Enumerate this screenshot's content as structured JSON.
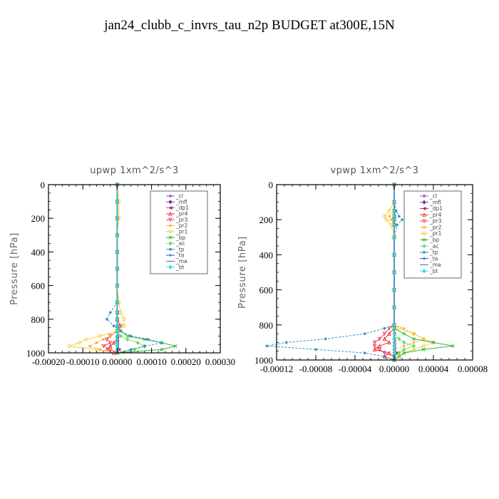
{
  "figure_title": "jan24_clubb_c_invrs_tau_n2p  BUDGET at300E,15N",
  "chart_data": [
    {
      "type": "line",
      "title": "upwp   1xm^2/s^3",
      "ylabel": "Pressure [hPa]",
      "xlim": [
        -0.0002,
        0.0003
      ],
      "ylim": [
        1000,
        0
      ],
      "xticks": [
        -0.0002,
        -0.0001,
        0.0,
        0.0001,
        0.0002,
        0.0003
      ],
      "xtick_labels": [
        "-0.00020",
        "-0.00010",
        "0.00000",
        "0.00010",
        "0.00020",
        "0.00030"
      ],
      "yticks": [
        0,
        200,
        400,
        600,
        800,
        1000
      ],
      "ytick_labels": [
        "0",
        "200",
        "400",
        "600",
        "800",
        "1000"
      ],
      "legend_position": "top-right",
      "pressure": [
        0,
        100,
        200,
        300,
        400,
        500,
        600,
        700,
        760,
        800,
        840,
        870,
        900,
        920,
        940,
        960,
        980,
        1000
      ],
      "series": [
        {
          "name": "_cl",
          "color": "#8844cc",
          "marker": "star",
          "values": [
            0,
            0,
            0,
            0,
            0,
            0,
            0,
            0,
            0,
            0,
            0,
            0,
            0,
            0,
            0,
            0,
            0,
            0
          ]
        },
        {
          "name": "_mfl",
          "color": "#6a2a8a",
          "marker": "diamond",
          "values": [
            0,
            0,
            0,
            0,
            0,
            0,
            0,
            0,
            0,
            0,
            0,
            0,
            0,
            0,
            0,
            0,
            0,
            0
          ]
        },
        {
          "name": "_dp1",
          "color": "#aa2266",
          "marker": "triangle-left",
          "values": [
            0,
            0,
            0,
            0,
            0,
            0,
            0,
            0,
            0,
            0,
            0,
            0,
            0,
            0,
            0,
            0,
            5e-06,
            0
          ]
        },
        {
          "name": "_pr4",
          "color": "#ee2222",
          "marker": "triangle-up",
          "values": [
            0,
            0,
            0,
            0,
            0,
            0,
            0,
            0,
            0,
            0,
            0,
            0,
            0,
            0,
            -1e-05,
            -2e-05,
            -3e-05,
            -1e-05
          ]
        },
        {
          "name": "_pr3",
          "color": "#ee3355",
          "marker": "triangle-down",
          "values": [
            0,
            0,
            0,
            0,
            0,
            0,
            0,
            0,
            0,
            0,
            1e-05,
            0,
            -2e-05,
            -3e-05,
            -2e-05,
            -4e-05,
            -2e-05,
            0
          ]
        },
        {
          "name": "_pr2",
          "color": "#ffaa33",
          "marker": "star",
          "values": [
            0,
            0,
            0,
            0,
            0,
            0,
            0,
            0,
            0,
            0,
            0,
            0,
            -2e-05,
            -4e-05,
            -6e-05,
            -8e-05,
            -5e-05,
            0
          ]
        },
        {
          "name": "_pr1",
          "color": "#eecc22",
          "marker": "circle",
          "values": [
            0,
            5e-06,
            5e-06,
            0,
            0,
            0,
            0,
            5e-06,
            1e-05,
            2e-05,
            2e-05,
            0,
            -5e-05,
            -9e-05,
            -0.00011,
            -0.00014,
            -6e-05,
            0
          ]
        },
        {
          "name": "_bp",
          "color": "#22aa22",
          "marker": "x",
          "values": [
            0,
            0,
            0,
            0,
            0,
            0,
            0,
            0,
            0,
            0,
            0,
            1e-05,
            3e-05,
            8e-05,
            0.00013,
            0.00017,
            0.00013,
            0
          ]
        },
        {
          "name": "_ac",
          "color": "#66dd66",
          "marker": "diamond",
          "values": [
            0,
            0,
            0,
            0,
            0,
            0,
            0,
            0,
            0,
            0,
            0,
            0,
            1e-05,
            3e-05,
            6e-05,
            8e-05,
            5e-05,
            0
          ]
        },
        {
          "name": "_tp",
          "color": "#2288bb",
          "marker": "star",
          "values": [
            0,
            0,
            0,
            0,
            0,
            0,
            0,
            0,
            -2e-05,
            -3e-05,
            -1e-05,
            1e-05,
            4e-05,
            9e-05,
            0.00013,
            8e-05,
            4e-05,
            0
          ]
        },
        {
          "name": "_ta",
          "color": "#2233cc",
          "marker": "plus",
          "values": [
            0,
            0,
            0,
            0,
            0,
            0,
            0,
            0,
            0,
            0,
            0,
            0,
            0,
            0,
            0,
            0,
            0,
            0
          ]
        },
        {
          "name": "_ma",
          "color": "#3377aa",
          "marker": "dash",
          "values": [
            0,
            0,
            0,
            0,
            0,
            0,
            0,
            0,
            0,
            0,
            0,
            0,
            0,
            0,
            0,
            0,
            0,
            0
          ]
        },
        {
          "name": "_bt",
          "color": "#22dddd",
          "marker": "diamond",
          "values": [
            0,
            0,
            0,
            0,
            0,
            0,
            0,
            0,
            0,
            0,
            0,
            0,
            0,
            0,
            0,
            0,
            0,
            0
          ]
        }
      ]
    },
    {
      "type": "line",
      "title": "vpwp   1xm^2/s^3",
      "ylabel": "Pressure [hPa]",
      "xlim": [
        -0.00012,
        8e-05
      ],
      "ylim": [
        1000,
        0
      ],
      "xticks": [
        -0.00012,
        -8e-05,
        -4e-05,
        0.0,
        4e-05,
        8e-05
      ],
      "xtick_labels": [
        "-0.00012",
        "-0.00008",
        "-0.00004",
        "0.00000",
        "0.00004",
        "0.00008"
      ],
      "yticks": [
        0,
        200,
        400,
        600,
        800,
        1000
      ],
      "ytick_labels": [
        "0",
        "200",
        "400",
        "600",
        "800",
        "1000"
      ],
      "legend_position": "top-right",
      "pressure": [
        0,
        100,
        150,
        180,
        200,
        230,
        300,
        400,
        500,
        600,
        700,
        800,
        820,
        850,
        880,
        900,
        920,
        940,
        960,
        980,
        1000
      ],
      "series": [
        {
          "name": "_cl",
          "color": "#8844cc",
          "marker": "star",
          "values": [
            0,
            0,
            0,
            0,
            0,
            0,
            0,
            0,
            0,
            0,
            0,
            0,
            0,
            0,
            0,
            0,
            0,
            0,
            0,
            0,
            0
          ]
        },
        {
          "name": "_mfl",
          "color": "#6a2a8a",
          "marker": "diamond",
          "values": [
            0,
            0,
            0,
            0,
            0,
            0,
            0,
            0,
            0,
            0,
            0,
            0,
            0,
            0,
            0,
            0,
            0,
            0,
            0,
            0,
            0
          ]
        },
        {
          "name": "_dp1",
          "color": "#aa2266",
          "marker": "triangle-left",
          "values": [
            0,
            0,
            0,
            0,
            0,
            0,
            0,
            0,
            0,
            0,
            0,
            0,
            0,
            0,
            0,
            0,
            0,
            0,
            3e-06,
            0,
            0
          ]
        },
        {
          "name": "_pr4",
          "color": "#ee2222",
          "marker": "triangle-up",
          "values": [
            0,
            0,
            0,
            0,
            0,
            0,
            0,
            0,
            0,
            0,
            0,
            0,
            0,
            -5e-06,
            -1e-05,
            -5e-06,
            -1.5e-05,
            -2e-05,
            -5e-06,
            -1e-05,
            0
          ]
        },
        {
          "name": "_pr3",
          "color": "#ee3355",
          "marker": "triangle-down",
          "values": [
            0,
            0,
            0,
            0,
            0,
            0,
            0,
            0,
            0,
            0,
            0,
            0,
            -5e-06,
            -1e-05,
            -1.5e-05,
            -2e-05,
            -2e-05,
            -1.5e-05,
            -1e-05,
            0,
            0
          ]
        },
        {
          "name": "_pr2",
          "color": "#ffaa33",
          "marker": "star",
          "values": [
            0,
            0,
            0,
            -5e-06,
            -3e-06,
            0,
            0,
            0,
            0,
            0,
            0,
            0,
            1e-05,
            2e-05,
            3e-05,
            2e-05,
            1e-05,
            0,
            0,
            0,
            0
          ]
        },
        {
          "name": "_pr1",
          "color": "#eecc22",
          "marker": "circle",
          "values": [
            0,
            0,
            -5e-06,
            -1e-05,
            -8e-06,
            -3e-06,
            0,
            0,
            0,
            0,
            0,
            0,
            5e-06,
            2e-05,
            3e-05,
            4e-05,
            3e-05,
            2e-05,
            1e-05,
            5e-06,
            0
          ]
        },
        {
          "name": "_bp",
          "color": "#22aa22",
          "marker": "x",
          "values": [
            0,
            0,
            0,
            0,
            0,
            0,
            0,
            0,
            0,
            0,
            0,
            0,
            0,
            1e-05,
            2e-05,
            4e-05,
            6e-05,
            3e-05,
            1e-05,
            5e-06,
            0
          ]
        },
        {
          "name": "_ac",
          "color": "#66dd66",
          "marker": "diamond",
          "values": [
            0,
            0,
            0,
            0,
            0,
            0,
            0,
            0,
            0,
            0,
            0,
            0,
            0,
            0,
            5e-06,
            1e-05,
            2e-05,
            1e-05,
            5e-06,
            0,
            0
          ]
        },
        {
          "name": "_tp",
          "color": "#2288bb",
          "marker": "star",
          "values": [
            0,
            0,
            2e-06,
            5e-06,
            8e-06,
            3e-06,
            0,
            0,
            0,
            0,
            0,
            0,
            -1e-05,
            -3e-05,
            -7e-05,
            -0.00011,
            -0.00013,
            -8e-05,
            -3e-05,
            -1e-05,
            0
          ]
        },
        {
          "name": "_ta",
          "color": "#2233cc",
          "marker": "plus",
          "values": [
            0,
            0,
            0,
            0,
            0,
            0,
            0,
            0,
            0,
            0,
            0,
            0,
            0,
            0,
            0,
            0,
            0,
            0,
            0,
            0,
            0
          ]
        },
        {
          "name": "_ma",
          "color": "#3377aa",
          "marker": "dash",
          "values": [
            0,
            0,
            0,
            0,
            0,
            0,
            0,
            0,
            0,
            0,
            0,
            0,
            0,
            0,
            0,
            0,
            0,
            0,
            0,
            0,
            0
          ]
        },
        {
          "name": "_bt",
          "color": "#22dddd",
          "marker": "diamond",
          "values": [
            0,
            0,
            0,
            0,
            0,
            0,
            0,
            0,
            0,
            0,
            0,
            0,
            0,
            0,
            0,
            0,
            0,
            0,
            0,
            0,
            0
          ]
        }
      ]
    }
  ]
}
